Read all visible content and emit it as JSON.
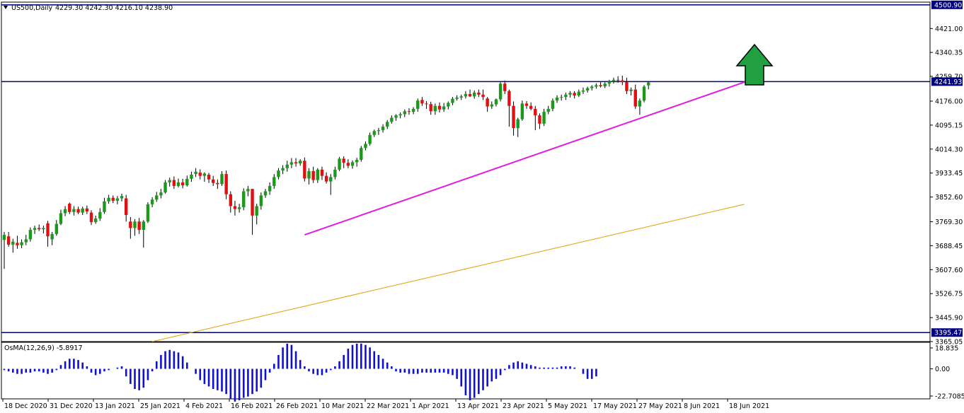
{
  "header": {
    "symbol": "US500,Daily",
    "ohlc": "4229.30 4242.30 4216.10 4238.90",
    "dropdown_icon": "triangle-down-icon"
  },
  "osma": {
    "label": "OsMA(12,26,9) -5.8917",
    "axis_labels": [
      "18.835",
      "0.00",
      "-22.7085"
    ],
    "range": [
      -22.7085,
      18.835
    ]
  },
  "price_axis": {
    "labels": [
      "4421.00",
      "4340.35",
      "4259.70",
      "4176.00",
      "4095.15",
      "4014.30",
      "3933.45",
      "3852.60",
      "3769.30",
      "3688.45",
      "3607.60",
      "3526.75",
      "3445.90",
      "3365.05"
    ],
    "range": [
      3365.05,
      4510
    ]
  },
  "levels": [
    {
      "value": 4500.9,
      "label": "4500.90"
    },
    {
      "value": 4241.93,
      "label": "4241.93"
    },
    {
      "value": 3395.47,
      "label": "3395.47"
    }
  ],
  "time_axis": {
    "labels": [
      "18 Dec 2020",
      "31 Dec 2020",
      "13 Jan 2021",
      "25 Jan 2021",
      "4 Feb 2021",
      "16 Feb 2021",
      "26 Feb 2021",
      "10 Mar 2021",
      "22 Mar 2021",
      "1 Apr 2021",
      "13 Apr 2021",
      "23 Apr 2021",
      "5 May 2021",
      "17 May 2021",
      "27 May 2021",
      "8 Jun 2021",
      "18 Jun 2021"
    ]
  },
  "colors": {
    "bull": "#1a9a1a",
    "bear": "#e01010",
    "trendline": "#e01ee0",
    "moving_average": "#e0a000",
    "level_line": "#000080",
    "osma_bar": "#1010d0",
    "arrow_fill": "#20a040"
  },
  "chart_data": {
    "type": "candlestick",
    "candles": [
      {
        "o": 3708,
        "h": 3735,
        "l": 3610,
        "c": 3725
      },
      {
        "o": 3720,
        "h": 3735,
        "l": 3685,
        "c": 3692
      },
      {
        "o": 3692,
        "h": 3712,
        "l": 3665,
        "c": 3702
      },
      {
        "o": 3698,
        "h": 3722,
        "l": 3678,
        "c": 3690
      },
      {
        "o": 3690,
        "h": 3710,
        "l": 3680,
        "c": 3700
      },
      {
        "o": 3700,
        "h": 3725,
        "l": 3690,
        "c": 3710
      },
      {
        "o": 3710,
        "h": 3750,
        "l": 3702,
        "c": 3742
      },
      {
        "o": 3742,
        "h": 3756,
        "l": 3728,
        "c": 3748
      },
      {
        "o": 3748,
        "h": 3760,
        "l": 3738,
        "c": 3744
      },
      {
        "o": 3744,
        "h": 3756,
        "l": 3730,
        "c": 3748
      },
      {
        "o": 3764,
        "h": 3772,
        "l": 3685,
        "c": 3720
      },
      {
        "o": 3710,
        "h": 3735,
        "l": 3690,
        "c": 3728
      },
      {
        "o": 3728,
        "h": 3775,
        "l": 3722,
        "c": 3762
      },
      {
        "o": 3762,
        "h": 3810,
        "l": 3758,
        "c": 3798
      },
      {
        "o": 3798,
        "h": 3822,
        "l": 3788,
        "c": 3812
      },
      {
        "o": 3830,
        "h": 3834,
        "l": 3795,
        "c": 3802
      },
      {
        "o": 3802,
        "h": 3822,
        "l": 3790,
        "c": 3812
      },
      {
        "o": 3812,
        "h": 3820,
        "l": 3795,
        "c": 3800
      },
      {
        "o": 3800,
        "h": 3820,
        "l": 3792,
        "c": 3814
      },
      {
        "o": 3814,
        "h": 3824,
        "l": 3795,
        "c": 3804
      },
      {
        "o": 3800,
        "h": 3808,
        "l": 3758,
        "c": 3768
      },
      {
        "o": 3768,
        "h": 3790,
        "l": 3762,
        "c": 3780
      },
      {
        "o": 3780,
        "h": 3815,
        "l": 3772,
        "c": 3802
      },
      {
        "o": 3802,
        "h": 3850,
        "l": 3796,
        "c": 3838
      },
      {
        "o": 3838,
        "h": 3860,
        "l": 3830,
        "c": 3850
      },
      {
        "o": 3850,
        "h": 3858,
        "l": 3832,
        "c": 3840
      },
      {
        "o": 3840,
        "h": 3856,
        "l": 3828,
        "c": 3848
      },
      {
        "o": 3848,
        "h": 3864,
        "l": 3838,
        "c": 3856
      },
      {
        "o": 3848,
        "h": 3860,
        "l": 3770,
        "c": 3792
      },
      {
        "o": 3770,
        "h": 3785,
        "l": 3712,
        "c": 3748
      },
      {
        "o": 3748,
        "h": 3778,
        "l": 3722,
        "c": 3770
      },
      {
        "o": 3770,
        "h": 3782,
        "l": 3728,
        "c": 3742
      },
      {
        "o": 3742,
        "h": 3775,
        "l": 3682,
        "c": 3770
      },
      {
        "o": 3770,
        "h": 3835,
        "l": 3765,
        "c": 3828
      },
      {
        "o": 3828,
        "h": 3852,
        "l": 3818,
        "c": 3844
      },
      {
        "o": 3844,
        "h": 3870,
        "l": 3836,
        "c": 3858
      },
      {
        "o": 3858,
        "h": 3880,
        "l": 3848,
        "c": 3868
      },
      {
        "o": 3868,
        "h": 3910,
        "l": 3864,
        "c": 3902
      },
      {
        "o": 3902,
        "h": 3918,
        "l": 3888,
        "c": 3910
      },
      {
        "o": 3910,
        "h": 3922,
        "l": 3880,
        "c": 3890
      },
      {
        "o": 3890,
        "h": 3915,
        "l": 3885,
        "c": 3902
      },
      {
        "o": 3902,
        "h": 3914,
        "l": 3882,
        "c": 3892
      },
      {
        "o": 3892,
        "h": 3925,
        "l": 3888,
        "c": 3914
      },
      {
        "o": 3914,
        "h": 3938,
        "l": 3904,
        "c": 3928
      },
      {
        "o": 3930,
        "h": 3950,
        "l": 3920,
        "c": 3938
      },
      {
        "o": 3935,
        "h": 3946,
        "l": 3912,
        "c": 3924
      },
      {
        "o": 3924,
        "h": 3936,
        "l": 3904,
        "c": 3932
      },
      {
        "o": 3928,
        "h": 3934,
        "l": 3900,
        "c": 3912
      },
      {
        "o": 3912,
        "h": 3924,
        "l": 3890,
        "c": 3900
      },
      {
        "o": 3900,
        "h": 3912,
        "l": 3880,
        "c": 3896
      },
      {
        "o": 3896,
        "h": 3940,
        "l": 3890,
        "c": 3930
      },
      {
        "o": 3930,
        "h": 3942,
        "l": 3845,
        "c": 3862
      },
      {
        "o": 3862,
        "h": 3872,
        "l": 3800,
        "c": 3822
      },
      {
        "o": 3822,
        "h": 3840,
        "l": 3790,
        "c": 3812
      },
      {
        "o": 3812,
        "h": 3830,
        "l": 3800,
        "c": 3818
      },
      {
        "o": 3818,
        "h": 3882,
        "l": 3808,
        "c": 3872
      },
      {
        "o": 3872,
        "h": 3890,
        "l": 3855,
        "c": 3880
      },
      {
        "o": 3880,
        "h": 3880,
        "l": 3725,
        "c": 3790
      },
      {
        "o": 3790,
        "h": 3830,
        "l": 3760,
        "c": 3822
      },
      {
        "o": 3822,
        "h": 3868,
        "l": 3810,
        "c": 3858
      },
      {
        "o": 3858,
        "h": 3880,
        "l": 3850,
        "c": 3872
      },
      {
        "o": 3872,
        "h": 3902,
        "l": 3860,
        "c": 3890
      },
      {
        "o": 3890,
        "h": 3930,
        "l": 3880,
        "c": 3920
      },
      {
        "o": 3920,
        "h": 3950,
        "l": 3912,
        "c": 3942
      },
      {
        "o": 3942,
        "h": 3960,
        "l": 3930,
        "c": 3950
      },
      {
        "o": 3950,
        "h": 3975,
        "l": 3938,
        "c": 3962
      },
      {
        "o": 3962,
        "h": 3984,
        "l": 3950,
        "c": 3970
      },
      {
        "o": 3970,
        "h": 3984,
        "l": 3955,
        "c": 3966
      },
      {
        "o": 3966,
        "h": 3980,
        "l": 3958,
        "c": 3975
      },
      {
        "o": 3975,
        "h": 3986,
        "l": 3905,
        "c": 3915
      },
      {
        "o": 3915,
        "h": 3950,
        "l": 3895,
        "c": 3940
      },
      {
        "o": 3940,
        "h": 3955,
        "l": 3900,
        "c": 3910
      },
      {
        "o": 3910,
        "h": 3950,
        "l": 3900,
        "c": 3945
      },
      {
        "o": 3945,
        "h": 3955,
        "l": 3910,
        "c": 3924
      },
      {
        "o": 3924,
        "h": 3936,
        "l": 3898,
        "c": 3905
      },
      {
        "o": 3905,
        "h": 3930,
        "l": 3860,
        "c": 3920
      },
      {
        "o": 3920,
        "h": 3955,
        "l": 3912,
        "c": 3945
      },
      {
        "o": 3945,
        "h": 3988,
        "l": 3940,
        "c": 3982
      },
      {
        "o": 3982,
        "h": 3990,
        "l": 3950,
        "c": 3968
      },
      {
        "o": 3968,
        "h": 3980,
        "l": 3950,
        "c": 3958
      },
      {
        "o": 3958,
        "h": 3976,
        "l": 3948,
        "c": 3970
      },
      {
        "o": 3970,
        "h": 3985,
        "l": 3955,
        "c": 3978
      },
      {
        "o": 3978,
        "h": 4025,
        "l": 3972,
        "c": 4018
      },
      {
        "o": 4018,
        "h": 4040,
        "l": 4010,
        "c": 4032
      },
      {
        "o": 4032,
        "h": 4070,
        "l": 4026,
        "c": 4062
      },
      {
        "o": 4062,
        "h": 4080,
        "l": 4055,
        "c": 4075
      },
      {
        "o": 4075,
        "h": 4086,
        "l": 4062,
        "c": 4078
      },
      {
        "o": 4078,
        "h": 4098,
        "l": 4070,
        "c": 4090
      },
      {
        "o": 4090,
        "h": 4112,
        "l": 4082,
        "c": 4106
      },
      {
        "o": 4106,
        "h": 4128,
        "l": 4100,
        "c": 4120
      },
      {
        "o": 4120,
        "h": 4132,
        "l": 4110,
        "c": 4128
      },
      {
        "o": 4128,
        "h": 4138,
        "l": 4118,
        "c": 4132
      },
      {
        "o": 4132,
        "h": 4148,
        "l": 4122,
        "c": 4142
      },
      {
        "o": 4142,
        "h": 4152,
        "l": 4130,
        "c": 4140
      },
      {
        "o": 4140,
        "h": 4156,
        "l": 4132,
        "c": 4150
      },
      {
        "o": 4150,
        "h": 4185,
        "l": 4140,
        "c": 4178
      },
      {
        "o": 4180,
        "h": 4190,
        "l": 4160,
        "c": 4168
      },
      {
        "o": 4168,
        "h": 4176,
        "l": 4150,
        "c": 4166
      },
      {
        "o": 4166,
        "h": 4174,
        "l": 4130,
        "c": 4142
      },
      {
        "o": 4142,
        "h": 4168,
        "l": 4130,
        "c": 4160
      },
      {
        "o": 4160,
        "h": 4172,
        "l": 4138,
        "c": 4148
      },
      {
        "o": 4148,
        "h": 4170,
        "l": 4140,
        "c": 4158
      },
      {
        "o": 4158,
        "h": 4175,
        "l": 4148,
        "c": 4170
      },
      {
        "o": 4170,
        "h": 4190,
        "l": 4162,
        "c": 4184
      },
      {
        "o": 4184,
        "h": 4196,
        "l": 4178,
        "c": 4188
      },
      {
        "o": 4188,
        "h": 4198,
        "l": 4180,
        "c": 4192
      },
      {
        "o": 4192,
        "h": 4210,
        "l": 4185,
        "c": 4200
      },
      {
        "o": 4200,
        "h": 4215,
        "l": 4190,
        "c": 4192
      },
      {
        "o": 4192,
        "h": 4212,
        "l": 4184,
        "c": 4205
      },
      {
        "o": 4205,
        "h": 4215,
        "l": 4190,
        "c": 4198
      },
      {
        "o": 4198,
        "h": 4215,
        "l": 4180,
        "c": 4190
      },
      {
        "o": 4185,
        "h": 4190,
        "l": 4140,
        "c": 4158
      },
      {
        "o": 4158,
        "h": 4175,
        "l": 4150,
        "c": 4165
      },
      {
        "o": 4165,
        "h": 4185,
        "l": 4158,
        "c": 4182
      },
      {
        "o": 4182,
        "h": 4240,
        "l": 4175,
        "c": 4235
      },
      {
        "o": 4235,
        "h": 4245,
        "l": 4200,
        "c": 4210
      },
      {
        "o": 4210,
        "h": 4215,
        "l": 4090,
        "c": 4160
      },
      {
        "o": 4160,
        "h": 4175,
        "l": 4060,
        "c": 4085
      },
      {
        "o": 4085,
        "h": 4120,
        "l": 4055,
        "c": 4115
      },
      {
        "o": 4115,
        "h": 4178,
        "l": 4110,
        "c": 4168
      },
      {
        "o": 4168,
        "h": 4176,
        "l": 4150,
        "c": 4160
      },
      {
        "o": 4160,
        "h": 4172,
        "l": 4145,
        "c": 4150
      },
      {
        "o": 4150,
        "h": 4160,
        "l": 4078,
        "c": 4128
      },
      {
        "o": 4128,
        "h": 4135,
        "l": 4082,
        "c": 4100
      },
      {
        "o": 4100,
        "h": 4150,
        "l": 4092,
        "c": 4140
      },
      {
        "o": 4140,
        "h": 4160,
        "l": 4132,
        "c": 4150
      },
      {
        "o": 4150,
        "h": 4185,
        "l": 4142,
        "c": 4178
      },
      {
        "o": 4178,
        "h": 4196,
        "l": 4170,
        "c": 4188
      },
      {
        "o": 4188,
        "h": 4198,
        "l": 4178,
        "c": 4190
      },
      {
        "o": 4190,
        "h": 4205,
        "l": 4180,
        "c": 4198
      },
      {
        "o": 4198,
        "h": 4210,
        "l": 4188,
        "c": 4204
      },
      {
        "o": 4204,
        "h": 4210,
        "l": 4185,
        "c": 4195
      },
      {
        "o": 4195,
        "h": 4215,
        "l": 4190,
        "c": 4208
      },
      {
        "o": 4208,
        "h": 4222,
        "l": 4200,
        "c": 4212
      },
      {
        "o": 4212,
        "h": 4225,
        "l": 4205,
        "c": 4220
      },
      {
        "o": 4220,
        "h": 4230,
        "l": 4212,
        "c": 4225
      },
      {
        "o": 4225,
        "h": 4236,
        "l": 4218,
        "c": 4230
      },
      {
        "o": 4230,
        "h": 4240,
        "l": 4222,
        "c": 4226
      },
      {
        "o": 4226,
        "h": 4240,
        "l": 4220,
        "c": 4235
      },
      {
        "o": 4235,
        "h": 4248,
        "l": 4225,
        "c": 4242
      },
      {
        "o": 4242,
        "h": 4255,
        "l": 4235,
        "c": 4248
      },
      {
        "o": 4248,
        "h": 4260,
        "l": 4238,
        "c": 4246
      },
      {
        "o": 4246,
        "h": 4262,
        "l": 4230,
        "c": 4240
      },
      {
        "o": 4240,
        "h": 4255,
        "l": 4200,
        "c": 4210
      },
      {
        "o": 4210,
        "h": 4222,
        "l": 4195,
        "c": 4215
      },
      {
        "o": 4215,
        "h": 4232,
        "l": 4150,
        "c": 4158
      },
      {
        "o": 4158,
        "h": 4185,
        "l": 4130,
        "c": 4178
      },
      {
        "o": 4178,
        "h": 4230,
        "l": 4172,
        "c": 4225
      },
      {
        "o": 4229.3,
        "h": 4242.3,
        "l": 4216.1,
        "c": 4238.9
      }
    ],
    "osma_values": [
      -1,
      -2,
      -3,
      -4,
      -4,
      -3,
      -3,
      -2,
      -2,
      -3,
      -4,
      -3,
      -1,
      3,
      6,
      8,
      8,
      7,
      5,
      2,
      -3,
      -5,
      -4,
      -2,
      -1,
      0,
      1,
      2,
      -6,
      -12,
      -16,
      -17,
      -15,
      -9,
      -2,
      6,
      11,
      14,
      15,
      14,
      13,
      10,
      5,
      0,
      -4,
      -9,
      -12,
      -14,
      -16,
      -17,
      -18,
      -20,
      -24,
      -26,
      -25,
      -23,
      -22,
      -20,
      -18,
      -15,
      -9,
      -3,
      4,
      11,
      17,
      20,
      19,
      14,
      7,
      2,
      -2,
      -4,
      -5,
      -5,
      -3,
      -1,
      2,
      6,
      11,
      16,
      19,
      20,
      20,
      19,
      17,
      14,
      11,
      8,
      5,
      2,
      -2,
      -3,
      -3,
      -4,
      -4,
      -4,
      -3,
      -3,
      -3,
      -3,
      -3,
      -3,
      -4,
      -5,
      -8,
      -14,
      -21,
      -25,
      -23,
      -20,
      -17,
      -14,
      -10,
      -8,
      -5,
      -1,
      3,
      5,
      6,
      5,
      4,
      3,
      2,
      1,
      1,
      1,
      1,
      1,
      2,
      2,
      2,
      1,
      0,
      -4,
      -8,
      -8,
      -6
    ],
    "trendline": {
      "from_index": 69,
      "from_value": 3725,
      "to_index": 171,
      "to_value": 4245
    },
    "moving_average": {
      "from_index": 34,
      "from_value": 3365.05,
      "to_index": 170,
      "to_value": 3828
    }
  }
}
